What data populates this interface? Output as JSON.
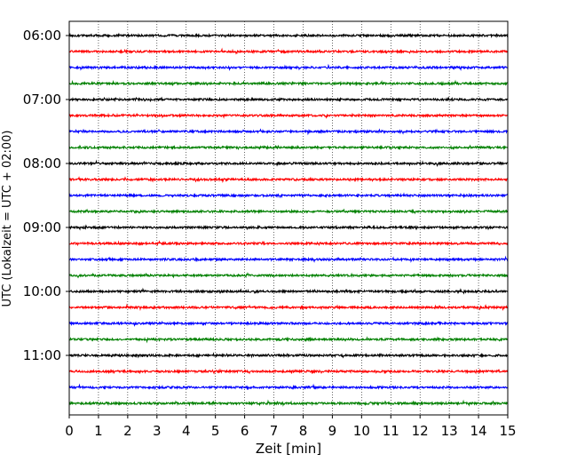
{
  "chart_data": {
    "type": "line",
    "title": "",
    "xlabel": "Zeit  [min]",
    "ylabel": "UTC (Lokalzeit = UTC + 02:00)",
    "xlim": [
      0,
      15
    ],
    "xticks": [
      "0",
      "1",
      "2",
      "3",
      "4",
      "5",
      "6",
      "7",
      "8",
      "9",
      "10",
      "11",
      "12",
      "13",
      "14",
      "15"
    ],
    "yticks": [
      "06:00",
      "07:00",
      "08:00",
      "09:00",
      "10:00",
      "11:00"
    ],
    "grid": "vertical dotted at each minute",
    "trace_colors": [
      "#000000",
      "#ff0000",
      "#0000ff",
      "#008000"
    ],
    "trace_start_times": [
      "06:00",
      "06:15",
      "06:30",
      "06:45",
      "07:00",
      "07:15",
      "07:30",
      "07:45",
      "08:00",
      "08:15",
      "08:30",
      "08:45",
      "09:00",
      "09:15",
      "09:30",
      "09:45",
      "10:00",
      "10:15",
      "10:30",
      "10:45",
      "11:00",
      "11:15",
      "11:30",
      "11:45"
    ]
  }
}
